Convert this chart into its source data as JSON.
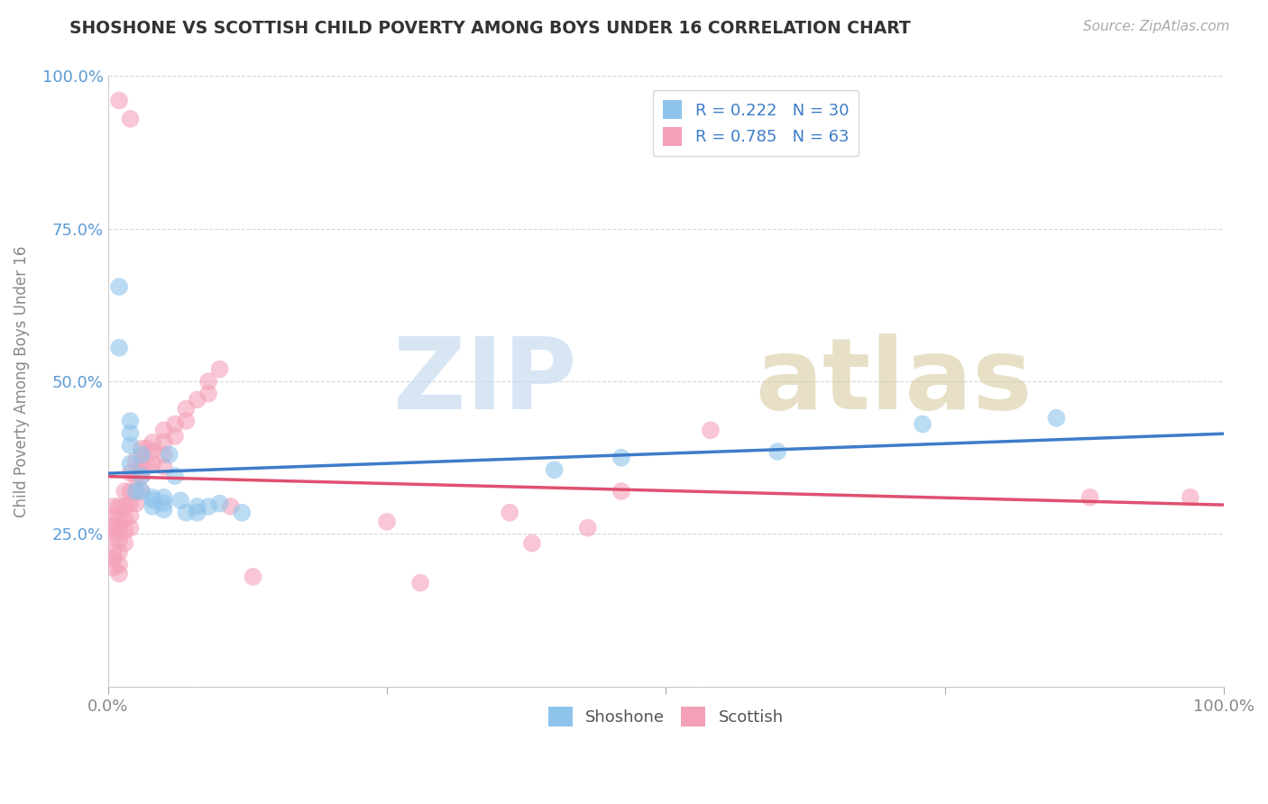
{
  "title": "SHOSHONE VS SCOTTISH CHILD POVERTY AMONG BOYS UNDER 16 CORRELATION CHART",
  "source_text": "Source: ZipAtlas.com",
  "ylabel": "Child Poverty Among Boys Under 16",
  "xlim": [
    0.0,
    1.0
  ],
  "ylim": [
    0.0,
    1.0
  ],
  "x_ticks": [
    0.0,
    0.25,
    0.5,
    0.75,
    1.0
  ],
  "y_ticks": [
    0.0,
    0.25,
    0.5,
    0.75,
    1.0
  ],
  "x_tick_labels": [
    "0.0%",
    "",
    "",
    "",
    "100.0%"
  ],
  "y_tick_labels": [
    "",
    "25.0%",
    "50.0%",
    "75.0%",
    "100.0%"
  ],
  "shoshone_R": 0.222,
  "shoshone_N": 30,
  "scottish_R": 0.785,
  "scottish_N": 63,
  "shoshone_color": "#8EC4EC",
  "scottish_color": "#F4A0B8",
  "shoshone_line_color": "#3D7CC9",
  "scottish_line_color": "#E05070",
  "shoshone_points": [
    [
      0.01,
      0.655
    ],
    [
      0.01,
      0.555
    ],
    [
      0.02,
      0.435
    ],
    [
      0.02,
      0.415
    ],
    [
      0.02,
      0.395
    ],
    [
      0.02,
      0.365
    ],
    [
      0.025,
      0.32
    ],
    [
      0.03,
      0.38
    ],
    [
      0.03,
      0.345
    ],
    [
      0.03,
      0.32
    ],
    [
      0.04,
      0.31
    ],
    [
      0.04,
      0.305
    ],
    [
      0.04,
      0.295
    ],
    [
      0.05,
      0.31
    ],
    [
      0.05,
      0.3
    ],
    [
      0.05,
      0.29
    ],
    [
      0.055,
      0.38
    ],
    [
      0.06,
      0.345
    ],
    [
      0.065,
      0.305
    ],
    [
      0.07,
      0.285
    ],
    [
      0.08,
      0.295
    ],
    [
      0.08,
      0.285
    ],
    [
      0.09,
      0.295
    ],
    [
      0.1,
      0.3
    ],
    [
      0.12,
      0.285
    ],
    [
      0.4,
      0.355
    ],
    [
      0.46,
      0.375
    ],
    [
      0.6,
      0.385
    ],
    [
      0.73,
      0.43
    ],
    [
      0.85,
      0.44
    ]
  ],
  "scottish_points": [
    [
      0.01,
      0.96
    ],
    [
      0.02,
      0.93
    ],
    [
      0.005,
      0.295
    ],
    [
      0.005,
      0.28
    ],
    [
      0.005,
      0.265
    ],
    [
      0.005,
      0.255
    ],
    [
      0.005,
      0.245
    ],
    [
      0.005,
      0.22
    ],
    [
      0.005,
      0.21
    ],
    [
      0.005,
      0.195
    ],
    [
      0.01,
      0.295
    ],
    [
      0.01,
      0.275
    ],
    [
      0.01,
      0.26
    ],
    [
      0.01,
      0.24
    ],
    [
      0.01,
      0.22
    ],
    [
      0.01,
      0.2
    ],
    [
      0.01,
      0.185
    ],
    [
      0.015,
      0.32
    ],
    [
      0.015,
      0.295
    ],
    [
      0.015,
      0.275
    ],
    [
      0.015,
      0.255
    ],
    [
      0.015,
      0.235
    ],
    [
      0.02,
      0.35
    ],
    [
      0.02,
      0.32
    ],
    [
      0.02,
      0.3
    ],
    [
      0.02,
      0.28
    ],
    [
      0.02,
      0.26
    ],
    [
      0.025,
      0.37
    ],
    [
      0.025,
      0.345
    ],
    [
      0.025,
      0.32
    ],
    [
      0.025,
      0.3
    ],
    [
      0.03,
      0.39
    ],
    [
      0.03,
      0.365
    ],
    [
      0.03,
      0.345
    ],
    [
      0.03,
      0.32
    ],
    [
      0.035,
      0.39
    ],
    [
      0.035,
      0.365
    ],
    [
      0.04,
      0.4
    ],
    [
      0.04,
      0.385
    ],
    [
      0.04,
      0.365
    ],
    [
      0.05,
      0.42
    ],
    [
      0.05,
      0.4
    ],
    [
      0.05,
      0.38
    ],
    [
      0.05,
      0.36
    ],
    [
      0.06,
      0.43
    ],
    [
      0.06,
      0.41
    ],
    [
      0.07,
      0.455
    ],
    [
      0.07,
      0.435
    ],
    [
      0.08,
      0.47
    ],
    [
      0.09,
      0.5
    ],
    [
      0.09,
      0.48
    ],
    [
      0.1,
      0.52
    ],
    [
      0.11,
      0.295
    ],
    [
      0.13,
      0.18
    ],
    [
      0.25,
      0.27
    ],
    [
      0.28,
      0.17
    ],
    [
      0.36,
      0.285
    ],
    [
      0.38,
      0.235
    ],
    [
      0.43,
      0.26
    ],
    [
      0.46,
      0.32
    ],
    [
      0.54,
      0.42
    ],
    [
      0.88,
      0.31
    ],
    [
      0.97,
      0.31
    ]
  ],
  "background_color": "#FFFFFF",
  "grid_color": "#CCCCCC",
  "title_color": "#333333",
  "axis_label_color": "#888888",
  "y_tick_color": "#5B9BD5"
}
